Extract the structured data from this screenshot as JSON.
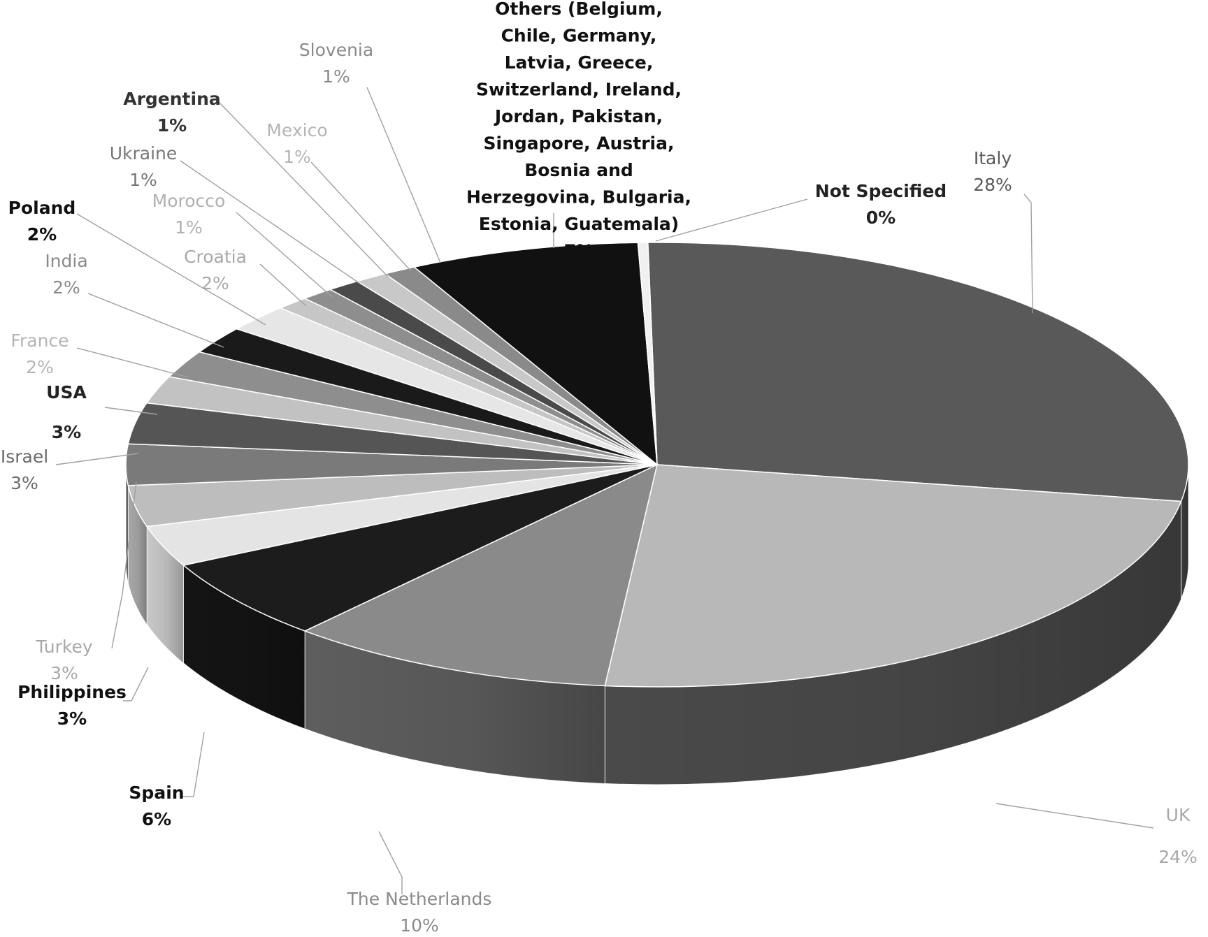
{
  "chart_data": {
    "type": "pie",
    "style": "3d-exploded-perspective",
    "title": "",
    "slices": [
      {
        "label": "Italy",
        "pct_label": "28%",
        "value": 28,
        "color": "#595959",
        "side": "#3a3a3a",
        "text_color": "#5a5a5a"
      },
      {
        "label": "UK",
        "pct_label": "24%",
        "value": 24,
        "color": "#b8b8b8",
        "side": "#4a4a4a",
        "text_color": "#a8a8a8"
      },
      {
        "label": "The Netherlands",
        "pct_label": "10%",
        "value": 10,
        "color": "#8a8a8a",
        "side": "#5e5e5e",
        "text_color": "#8a8a8a"
      },
      {
        "label": "Spain",
        "pct_label": "6%",
        "value": 6,
        "color": "#1c1c1c",
        "side": "#141414",
        "text_color": "#111111"
      },
      {
        "label": "Philippines",
        "pct_label": "3%",
        "value": 3,
        "color": "#e4e4e4",
        "side": "#c8c8c8",
        "text_color": "#111111"
      },
      {
        "label": "Turkey",
        "pct_label": "3%",
        "value": 3,
        "color": "#bdbdbd",
        "side": "#a8a8a8",
        "text_color": "#a8a8a8"
      },
      {
        "label": "Israel",
        "pct_label": "3%",
        "value": 3,
        "color": "#7a7a7a",
        "side": "#5e5e5e",
        "text_color": "#6a6a6a"
      },
      {
        "label": "USA",
        "pct_label": "3%",
        "value": 3,
        "color": "#555555",
        "side": "#444444",
        "text_color": "#222222"
      },
      {
        "label": "France",
        "pct_label": "2%",
        "value": 2,
        "color": "#c2c2c2",
        "side": "#aaaaaa",
        "text_color": "#b5b5b5"
      },
      {
        "label": "India",
        "pct_label": "2%",
        "value": 2,
        "color": "#8e8e8e",
        "side": "#707070",
        "text_color": "#8a8a8a"
      },
      {
        "label": "Poland",
        "pct_label": "2%",
        "value": 2,
        "color": "#1a1a1a",
        "side": "#141414",
        "text_color": "#111111"
      },
      {
        "label": "Croatia",
        "pct_label": "2%",
        "value": 2,
        "color": "#e6e6e6",
        "side": "#cccccc",
        "text_color": "#a8a8a8"
      },
      {
        "label": "Morocco",
        "pct_label": "1%",
        "value": 1,
        "color": "#c6c6c6",
        "side": "#aaaaaa",
        "text_color": "#b0b0b0"
      },
      {
        "label": "Ukraine",
        "pct_label": "1%",
        "value": 1,
        "color": "#8e8e8e",
        "side": "#707070",
        "text_color": "#777777"
      },
      {
        "label": "Argentina",
        "pct_label": "1%",
        "value": 1,
        "color": "#4a4a4a",
        "side": "#3a3a3a",
        "text_color": "#333333"
      },
      {
        "label": "Mexico",
        "pct_label": "1%",
        "value": 1,
        "color": "#c8c8c8",
        "side": "#aaaaaa",
        "text_color": "#b5b5b5"
      },
      {
        "label": "Slovenia",
        "pct_label": "1%",
        "value": 1,
        "color": "#8a8a8a",
        "side": "#707070",
        "text_color": "#8a8a8a"
      },
      {
        "label": "Others (Belgium, Chile, Germany, Latvia, Greece, Switzerland, Ireland, Jordan, Pakistan, Singapore, Austria, Bosnia and Herzegovina, Bulgaria, Estonia, Guatemala)",
        "pct_label": "7%",
        "value": 7,
        "color": "#111111",
        "side": "#0c0c0c",
        "text_color": "#111111"
      },
      {
        "label": "Not Specified",
        "pct_label": "0%",
        "value": 0.3,
        "color": "#f0f0f0",
        "side": "#dddddd",
        "text_color": "#222222"
      }
    ]
  }
}
